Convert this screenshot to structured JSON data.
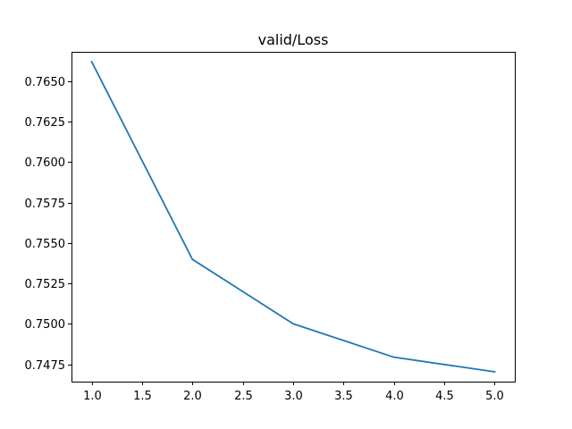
{
  "chart_data": {
    "type": "line",
    "title": "valid/Loss",
    "xlabel": "",
    "ylabel": "",
    "x": [
      1.0,
      2.0,
      3.0,
      4.0,
      5.0
    ],
    "series": [
      {
        "values": [
          0.76621,
          0.75399,
          0.75001,
          0.74794,
          0.74704
        ],
        "color": "#1f77b4"
      }
    ],
    "xlim": [
      0.8,
      5.2
    ],
    "ylim": [
      0.74643,
      0.76682
    ],
    "xticks": [
      1.0,
      1.5,
      2.0,
      2.5,
      3.0,
      3.5,
      4.0,
      4.5,
      5.0
    ],
    "xtick_labels": [
      "1.0",
      "1.5",
      "2.0",
      "2.5",
      "3.0",
      "3.5",
      "4.0",
      "4.5",
      "5.0"
    ],
    "yticks": [
      0.7475,
      0.75,
      0.7525,
      0.755,
      0.7575,
      0.76,
      0.7625,
      0.765
    ],
    "ytick_labels": [
      "0.7475",
      "0.7500",
      "0.7525",
      "0.7550",
      "0.7575",
      "0.7600",
      "0.7625",
      "0.7650"
    ],
    "grid": false,
    "legend": false
  }
}
